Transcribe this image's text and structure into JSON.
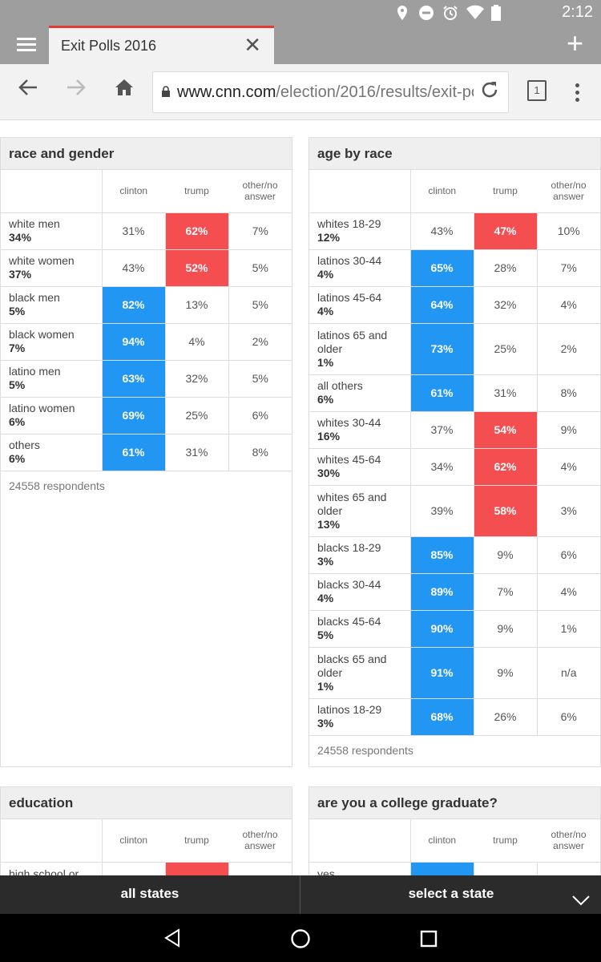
{
  "status": {
    "time": "2:12"
  },
  "browser": {
    "tab_title": "Exit Polls 2016",
    "url_host": "www.cnn.com",
    "url_path": "/election/2016/results/exit-po",
    "tab_count": "1"
  },
  "colors": {
    "clinton": "#2196f3",
    "trump": "#f44e50"
  },
  "race_gender": {
    "title": "race and gender",
    "headers": {
      "clinton": "clinton",
      "trump": "trump",
      "other": "other/no answer"
    },
    "rows": [
      {
        "label": "white men",
        "share": "34%",
        "clinton": "31%",
        "trump": "62%",
        "other": "7%",
        "winner": "trump"
      },
      {
        "label": "white women",
        "share": "37%",
        "clinton": "43%",
        "trump": "52%",
        "other": "5%",
        "winner": "trump"
      },
      {
        "label": "black men",
        "share": "5%",
        "clinton": "82%",
        "trump": "13%",
        "other": "5%",
        "winner": "clinton"
      },
      {
        "label": "black women",
        "share": "7%",
        "clinton": "94%",
        "trump": "4%",
        "other": "2%",
        "winner": "clinton"
      },
      {
        "label": "latino men",
        "share": "5%",
        "clinton": "63%",
        "trump": "32%",
        "other": "5%",
        "winner": "clinton"
      },
      {
        "label": "latino women",
        "share": "6%",
        "clinton": "69%",
        "trump": "25%",
        "other": "6%",
        "winner": "clinton"
      },
      {
        "label": "others",
        "share": "6%",
        "clinton": "61%",
        "trump": "31%",
        "other": "8%",
        "winner": "clinton"
      }
    ],
    "respondents": "24558 respondents"
  },
  "age_race": {
    "title": "age by race",
    "headers": {
      "clinton": "clinton",
      "trump": "trump",
      "other": "other/no answer"
    },
    "rows": [
      {
        "label": "whites 18-29",
        "share": "12%",
        "clinton": "43%",
        "trump": "47%",
        "other": "10%",
        "winner": "trump"
      },
      {
        "label": "latinos 30-44",
        "share": "4%",
        "clinton": "65%",
        "trump": "28%",
        "other": "7%",
        "winner": "clinton"
      },
      {
        "label": "latinos 45-64",
        "share": "4%",
        "clinton": "64%",
        "trump": "32%",
        "other": "4%",
        "winner": "clinton"
      },
      {
        "label": "latinos 65 and older",
        "share": "1%",
        "clinton": "73%",
        "trump": "25%",
        "other": "2%",
        "winner": "clinton"
      },
      {
        "label": "all others",
        "share": "6%",
        "clinton": "61%",
        "trump": "31%",
        "other": "8%",
        "winner": "clinton"
      },
      {
        "label": "whites 30-44",
        "share": "16%",
        "clinton": "37%",
        "trump": "54%",
        "other": "9%",
        "winner": "trump"
      },
      {
        "label": "whites 45-64",
        "share": "30%",
        "clinton": "34%",
        "trump": "62%",
        "other": "4%",
        "winner": "trump"
      },
      {
        "label": "whites 65 and older",
        "share": "13%",
        "clinton": "39%",
        "trump": "58%",
        "other": "3%",
        "winner": "trump"
      },
      {
        "label": "blacks 18-29",
        "share": "3%",
        "clinton": "85%",
        "trump": "9%",
        "other": "6%",
        "winner": "clinton"
      },
      {
        "label": "blacks 30-44",
        "share": "4%",
        "clinton": "89%",
        "trump": "7%",
        "other": "4%",
        "winner": "clinton"
      },
      {
        "label": "blacks 45-64",
        "share": "5%",
        "clinton": "90%",
        "trump": "9%",
        "other": "1%",
        "winner": "clinton"
      },
      {
        "label": "blacks 65 and older",
        "share": "1%",
        "clinton": "91%",
        "trump": "9%",
        "other": "n/a",
        "winner": "clinton"
      },
      {
        "label": "latinos 18-29",
        "share": "3%",
        "clinton": "68%",
        "trump": "26%",
        "other": "6%",
        "winner": "clinton"
      }
    ],
    "respondents": "24558 respondents"
  },
  "education": {
    "title": "education",
    "headers": {
      "clinton": "clinton",
      "trump": "trump",
      "other": "other/no answer"
    },
    "first_row_label": "high school or",
    "first_row_winner": "trump"
  },
  "college": {
    "title": "are you a college graduate?",
    "headers": {
      "clinton": "clinton",
      "trump": "trump",
      "other": "other/no answer"
    },
    "first_row_label": "yes",
    "first_row_winner": "clinton"
  },
  "footer": {
    "all_states": "all states",
    "select_state": "select a state"
  }
}
